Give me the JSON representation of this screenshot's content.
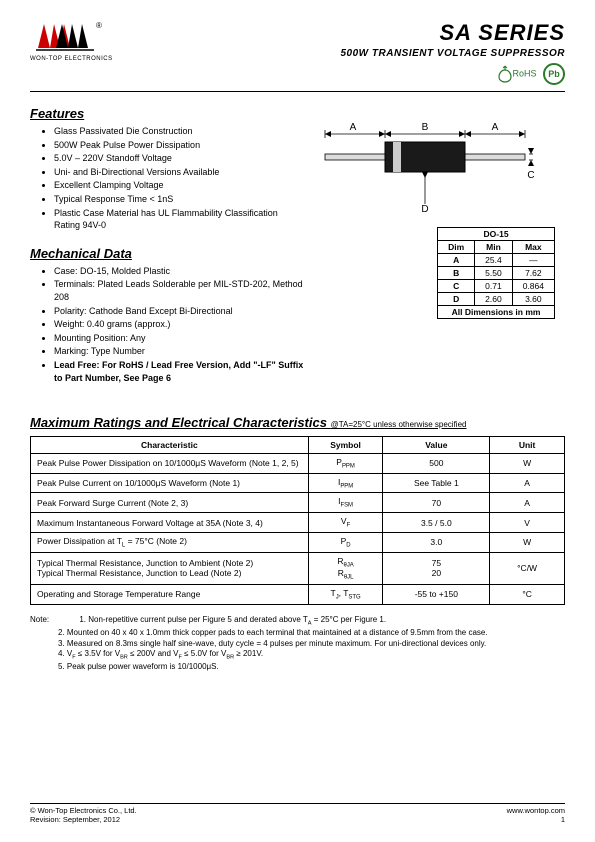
{
  "logo": {
    "company_sub": "WON-TOP ELECTRONICS",
    "trademark": "®"
  },
  "title": {
    "main": "SA  SERIES",
    "sub": "500W  TRANSIENT  VOLTAGE  SUPPRESSOR"
  },
  "badges": {
    "rohs": "RoHS",
    "pb": "Pb"
  },
  "features": {
    "title": "Features",
    "items": [
      "Glass Passivated Die Construction",
      "500W Peak Pulse Power Dissipation",
      "5.0V – 220V Standoff Voltage",
      "Uni- and Bi-Directional Versions Available",
      "Excellent Clamping Voltage",
      "Typical Response Time < 1nS",
      "Plastic Case Material has UL Flammability Classification Rating 94V-0"
    ]
  },
  "mechanical": {
    "title": "Mechanical Data",
    "items": [
      "Case: DO-15, Molded Plastic",
      "Terminals: Plated Leads Solderable per MIL-STD-202, Method 208",
      "Polarity: Cathode Band Except Bi-Directional",
      "Weight: 0.40 grams (approx.)",
      "Mounting Position: Any",
      "Marking: Type Number"
    ],
    "lead_free": "Lead Free: For RoHS / Lead Free Version, Add \"-LF\" Suffix to Part Number, See Page 6"
  },
  "pkg_diagram": {
    "labels": {
      "A": "A",
      "B": "B",
      "C": "C",
      "D": "D"
    },
    "colors": {
      "body": "#222222",
      "band": "#cccccc",
      "lead": "#888888",
      "line": "#000000"
    }
  },
  "dim_table": {
    "header": "DO-15",
    "columns": [
      "Dim",
      "Min",
      "Max"
    ],
    "rows": [
      [
        "A",
        "25.4",
        "—"
      ],
      [
        "B",
        "5.50",
        "7.62"
      ],
      [
        "C",
        "0.71",
        "0.864"
      ],
      [
        "D",
        "2.60",
        "3.60"
      ]
    ],
    "footer": "All Dimensions in mm"
  },
  "ratings": {
    "title": "Maximum Ratings and Electrical Characteristics",
    "condition": "@TA=25°C unless otherwise specified",
    "columns": [
      "Characteristic",
      "Symbol",
      "Value",
      "Unit"
    ],
    "rows": [
      {
        "char": "Peak Pulse Power Dissipation on 10/1000μS Waveform (Note 1, 2, 5)",
        "sym": "P<sub>PPM</sub>",
        "val": "500",
        "unit": "W"
      },
      {
        "char": "Peak Pulse Current on 10/1000μS Waveform (Note 1)",
        "sym": "I<sub>PPM</sub>",
        "val": "See Table 1",
        "unit": "A"
      },
      {
        "char": "Peak Forward Surge Current (Note 2, 3)",
        "sym": "I<sub>FSM</sub>",
        "val": "70",
        "unit": "A"
      },
      {
        "char": "Maximum Instantaneous Forward Voltage at 35A (Note 3, 4)",
        "sym": "V<sub>F</sub>",
        "val": "3.5 / 5.0",
        "unit": "V"
      },
      {
        "char": "Power Dissipation at T<sub>L</sub> = 75°C (Note 2)",
        "sym": "P<sub>D</sub>",
        "val": "3.0",
        "unit": "W"
      },
      {
        "char": "Typical Thermal Resistance, Junction to Ambient (Note 2)<br>Typical Thermal Resistance, Junction to Lead (Note 2)",
        "sym": "R<sub>θJA</sub><br>R<sub>θJL</sub>",
        "val": "75<br>20",
        "unit": "°C/W"
      },
      {
        "char": "Operating and Storage Temperature Range",
        "sym": "T<sub>J</sub>, T<sub>STG</sub>",
        "val": "-55 to +150",
        "unit": "°C"
      }
    ]
  },
  "notes": {
    "label": "Note:",
    "items": [
      "1. Non-repetitive current pulse per Figure 5 and derated above T<sub>A</sub> = 25°C per Figure 1.",
      "2. Mounted on 40 x 40 x 1.0mm thick copper pads to each terminal that maintained at a distance of 9.5mm from the case.",
      "3. Measured on 8.3ms single half sine-wave, duty cycle = 4 pulses per minute maximum. For uni-directional devices only.",
      "4. V<sub>F</sub> ≤ 3.5V for V<sub>BR</sub> ≤ 200V and V<sub>F</sub> ≤ 5.0V for V<sub>BR</sub> ≥ 201V.",
      "5. Peak pulse power waveform is 10/1000μS."
    ]
  },
  "footer": {
    "copyright": "© Won-Top Electronics Co., Ltd.",
    "revision": "Revision: September, 2012",
    "url": "www.wontop.com",
    "page": "1"
  }
}
